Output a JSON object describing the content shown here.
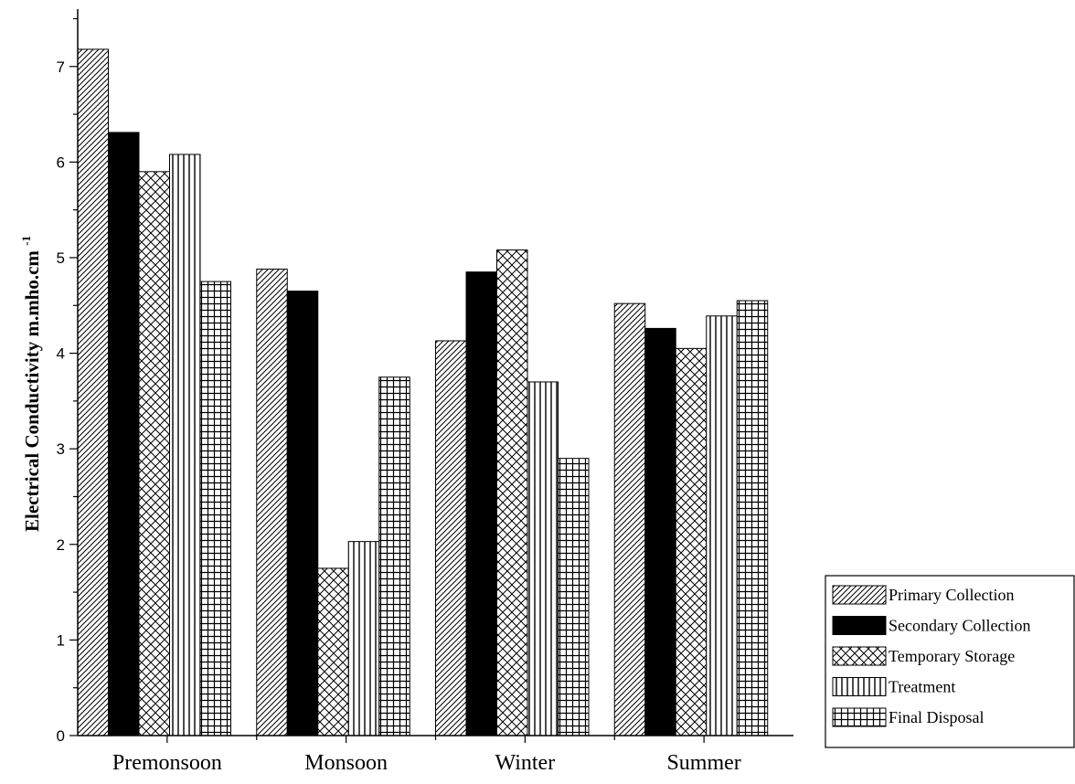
{
  "chart_data": {
    "type": "bar",
    "title": "",
    "xlabel": "",
    "ylabel": "Electrical Conductivity m.mho.cm",
    "ylabel_superscript": "-1",
    "ylim": [
      0,
      7.6
    ],
    "yticks": [
      0,
      1,
      2,
      3,
      4,
      5,
      6,
      7
    ],
    "categories": [
      "Premonsoon",
      "Monsoon",
      "Winter",
      "Summer"
    ],
    "legend_position": "right",
    "series": [
      {
        "name": "Primary Collection",
        "pattern": "diagonal-hatch",
        "values": [
          7.18,
          4.88,
          4.13,
          4.52
        ]
      },
      {
        "name": "Secondary Collection",
        "pattern": "solid-black",
        "values": [
          6.31,
          4.65,
          4.85,
          4.26
        ]
      },
      {
        "name": "Temporary Storage",
        "pattern": "crosshatch",
        "values": [
          5.9,
          1.75,
          5.08,
          4.05
        ]
      },
      {
        "name": "Treatment",
        "pattern": "vertical-lines",
        "values": [
          6.08,
          2.03,
          3.7,
          4.39
        ]
      },
      {
        "name": "Final Disposal",
        "pattern": "grid",
        "values": [
          4.75,
          3.75,
          2.9,
          4.55
        ]
      }
    ],
    "colors": {
      "ink": "#000000",
      "background": "#ffffff"
    }
  }
}
